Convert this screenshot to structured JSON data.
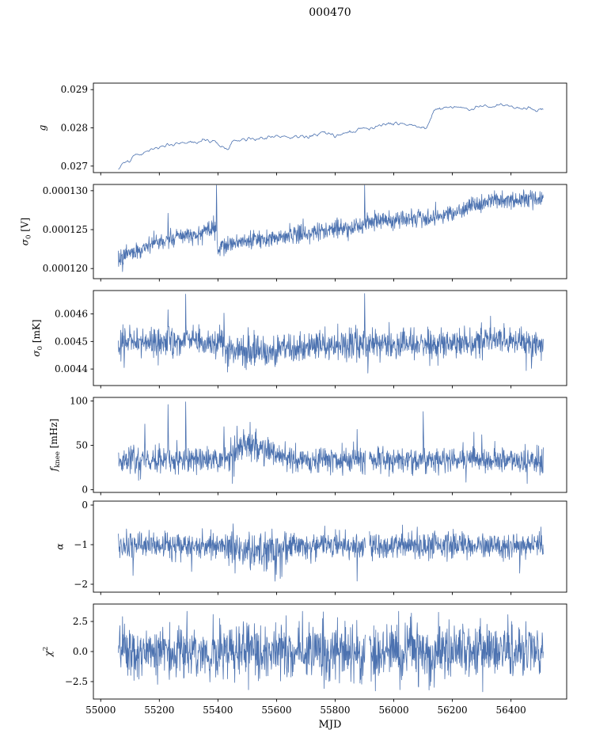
{
  "title": "000470",
  "chart_data": {
    "type": "line",
    "title": "000470",
    "xlabel": "MJD",
    "xlim": [
      54975,
      56590
    ],
    "xticks": [
      {
        "v": 55000,
        "label": "55000"
      },
      {
        "v": 55200,
        "label": "55200"
      },
      {
        "v": 55400,
        "label": "55400"
      },
      {
        "v": 55600,
        "label": "55600"
      },
      {
        "v": 55800,
        "label": "55800"
      },
      {
        "v": 56000,
        "label": "56000"
      },
      {
        "v": 56200,
        "label": "56200"
      },
      {
        "v": 56400,
        "label": "56400"
      }
    ],
    "series_color": "#4c72b0",
    "axis_color": "#000000",
    "legend": "none",
    "grid": false,
    "subplots": [
      {
        "name": "g",
        "ylabel": {
          "main": "g",
          "sub": "",
          "sup": "",
          "post": "",
          "italic": true
        },
        "ylim": [
          0.02683,
          0.02917
        ],
        "yticks": [
          {
            "v": 0.027,
            "label": "0.027"
          },
          {
            "v": 0.028,
            "label": "0.028"
          },
          {
            "v": 0.029,
            "label": "0.029"
          }
        ],
        "series": {
          "x_start": 55060,
          "x_end": 56510,
          "n": 460,
          "noise": 4.2e-05,
          "smooth": 3,
          "seed": 101,
          "clip": [
            0.02684,
            0.02916
          ],
          "gaps": [],
          "noise_regions": [],
          "spikes": [],
          "baseline": [
            [
              55060,
              0.02692
            ],
            [
              55090,
              0.02715
            ],
            [
              55130,
              0.0273
            ],
            [
              55180,
              0.02745
            ],
            [
              55230,
              0.02755
            ],
            [
              55300,
              0.02762
            ],
            [
              55380,
              0.02768
            ],
            [
              55420,
              0.02752
            ],
            [
              55435,
              0.02742
            ],
            [
              55450,
              0.02768
            ],
            [
              55520,
              0.0277
            ],
            [
              55560,
              0.02775
            ],
            [
              55600,
              0.02778
            ],
            [
              55650,
              0.02772
            ],
            [
              55680,
              0.0278
            ],
            [
              55720,
              0.02776
            ],
            [
              55760,
              0.0279
            ],
            [
              55800,
              0.02778
            ],
            [
              55840,
              0.02788
            ],
            [
              55880,
              0.02795
            ],
            [
              55920,
              0.028
            ],
            [
              55960,
              0.02808
            ],
            [
              56000,
              0.02815
            ],
            [
              56040,
              0.0281
            ],
            [
              56080,
              0.02805
            ],
            [
              56110,
              0.028
            ],
            [
              56140,
              0.02848
            ],
            [
              56180,
              0.02852
            ],
            [
              56220,
              0.02855
            ],
            [
              56260,
              0.02848
            ],
            [
              56300,
              0.02858
            ],
            [
              56330,
              0.02852
            ],
            [
              56360,
              0.02865
            ],
            [
              56390,
              0.0286
            ],
            [
              56420,
              0.0285
            ],
            [
              56450,
              0.02852
            ],
            [
              56480,
              0.02848
            ],
            [
              56510,
              0.0285
            ]
          ]
        }
      },
      {
        "name": "sigma0-V",
        "ylabel": {
          "main": "σ",
          "sub": "0",
          "sup": "",
          "post": " [V]",
          "italic": true
        },
        "ylim": [
          0.0001187,
          0.0001308
        ],
        "yticks": [
          {
            "v": 0.00012,
            "label": "0.000120"
          },
          {
            "v": 0.000125,
            "label": "0.000125"
          },
          {
            "v": 0.00013,
            "label": "0.000130"
          }
        ],
        "series": {
          "x_start": 55060,
          "x_end": 56510,
          "n": 1300,
          "noise": 5.5e-07,
          "smooth": 1,
          "seed": 202,
          "clip": [
            0.0001188,
            0.0001307
          ],
          "gaps": [],
          "noise_regions": [],
          "spikes": [
            {
              "x": 55075,
              "v": 0.0001196
            },
            {
              "x": 55230,
              "v": 0.0001271
            },
            {
              "x": 55395,
              "v": 0.0001307
            },
            {
              "x": 55900,
              "v": 0.0001307
            },
            {
              "x": 56060,
              "v": 0.0001277
            }
          ],
          "baseline": [
            [
              55060,
              0.0001212
            ],
            [
              55100,
              0.000122
            ],
            [
              55150,
              0.0001228
            ],
            [
              55200,
              0.0001234
            ],
            [
              55250,
              0.0001238
            ],
            [
              55300,
              0.0001242
            ],
            [
              55350,
              0.0001247
            ],
            [
              55395,
              0.0001252
            ],
            [
              55400,
              0.0001226
            ],
            [
              55450,
              0.0001232
            ],
            [
              55500,
              0.0001236
            ],
            [
              55550,
              0.0001238
            ],
            [
              55600,
              0.0001241
            ],
            [
              55650,
              0.0001243
            ],
            [
              55700,
              0.0001246
            ],
            [
              55750,
              0.0001248
            ],
            [
              55800,
              0.000125
            ],
            [
              55850,
              0.0001252
            ],
            [
              55895,
              0.0001255
            ],
            [
              55910,
              0.0001262
            ],
            [
              55960,
              0.0001262
            ],
            [
              56000,
              0.0001263
            ],
            [
              56050,
              0.0001264
            ],
            [
              56100,
              0.0001262
            ],
            [
              56150,
              0.0001268
            ],
            [
              56200,
              0.0001272
            ],
            [
              56250,
              0.0001278
            ],
            [
              56300,
              0.0001284
            ],
            [
              56350,
              0.0001288
            ],
            [
              56400,
              0.0001289
            ],
            [
              56450,
              0.0001288
            ],
            [
              56510,
              0.0001287
            ]
          ]
        }
      },
      {
        "name": "sigma0-mK",
        "ylabel": {
          "main": "σ",
          "sub": "0",
          "sup": "",
          "post": " [mK]",
          "italic": true
        },
        "ylim": [
          0.00434,
          0.004685
        ],
        "yticks": [
          {
            "v": 0.0044,
            "label": "0.0044"
          },
          {
            "v": 0.0045,
            "label": "0.0045"
          },
          {
            "v": 0.0046,
            "label": "0.0046"
          }
        ],
        "series": {
          "x_start": 55060,
          "x_end": 56510,
          "n": 1300,
          "noise": 2.6e-05,
          "smooth": 1,
          "seed": 303,
          "clip": [
            0.004355,
            0.004675
          ],
          "gaps": [],
          "noise_regions": [],
          "spikes": [
            {
              "x": 55080,
              "v": 0.004405
            },
            {
              "x": 55230,
              "v": 0.004615
            },
            {
              "x": 55290,
              "v": 0.004672
            },
            {
              "x": 55420,
              "v": 0.004603
            },
            {
              "x": 55900,
              "v": 0.004674
            },
            {
              "x": 55912,
              "v": 0.004385
            },
            {
              "x": 56330,
              "v": 0.004592
            },
            {
              "x": 56470,
              "v": 0.004402
            }
          ],
          "baseline": [
            [
              55060,
              0.0045
            ],
            [
              55400,
              0.0045
            ],
            [
              55430,
              0.00448
            ],
            [
              55460,
              0.004465
            ],
            [
              55520,
              0.004462
            ],
            [
              55600,
              0.004468
            ],
            [
              55680,
              0.004478
            ],
            [
              55760,
              0.004482
            ],
            [
              55850,
              0.004488
            ],
            [
              55950,
              0.004488
            ],
            [
              56050,
              0.004492
            ],
            [
              56150,
              0.004492
            ],
            [
              56250,
              0.004498
            ],
            [
              56320,
              0.004505
            ],
            [
              56400,
              0.004498
            ],
            [
              56510,
              0.0045
            ]
          ]
        }
      },
      {
        "name": "fknee",
        "ylabel": {
          "main": "f",
          "sub": "knee",
          "sup": "",
          "post": " [mHz]",
          "italic": true
        },
        "ylim": [
          -3,
          104
        ],
        "yticks": [
          {
            "v": 0,
            "label": "0"
          },
          {
            "v": 50,
            "label": "50"
          },
          {
            "v": 100,
            "label": "100"
          }
        ],
        "series": {
          "x_start": 55060,
          "x_end": 56510,
          "n": 1300,
          "noise": 7.5,
          "smooth": 1,
          "seed": 404,
          "clip": [
            7,
            100
          ],
          "gaps": [
            [
              55903,
              55917
            ]
          ],
          "noise_regions": [
            {
              "from": 55440,
              "to": 55580,
              "mult": 1.35
            }
          ],
          "spikes": [
            {
              "x": 55150,
              "v": 74
            },
            {
              "x": 55230,
              "v": 96
            },
            {
              "x": 55290,
              "v": 99
            },
            {
              "x": 55420,
              "v": 71
            },
            {
              "x": 55875,
              "v": 68
            },
            {
              "x": 56100,
              "v": 88
            },
            {
              "x": 56300,
              "v": 62
            }
          ],
          "baseline": [
            [
              55060,
              33
            ],
            [
              55430,
              34
            ],
            [
              55465,
              48
            ],
            [
              55505,
              52
            ],
            [
              55550,
              46
            ],
            [
              55610,
              38
            ],
            [
              55680,
              34
            ],
            [
              56510,
              33
            ]
          ]
        }
      },
      {
        "name": "alpha",
        "ylabel": {
          "main": "α",
          "sub": "",
          "sup": "",
          "post": "",
          "italic": true
        },
        "ylim": [
          -2.2,
          0.1
        ],
        "yticks": [
          {
            "v": -2,
            "label": "−2"
          },
          {
            "v": -1,
            "label": "−1"
          },
          {
            "v": 0,
            "label": "0"
          }
        ],
        "series": {
          "x_start": 55060,
          "x_end": 56510,
          "n": 1300,
          "noise": 0.17,
          "smooth": 1,
          "seed": 505,
          "clip": [
            -2.0,
            -0.3
          ],
          "gaps": [
            [
              55903,
              55917
            ]
          ],
          "noise_regions": [
            {
              "from": 55430,
              "to": 55650,
              "mult": 1.5
            }
          ],
          "spikes": [
            {
              "x": 55110,
              "v": -1.78
            },
            {
              "x": 55310,
              "v": -1.68
            },
            {
              "x": 55875,
              "v": -1.92
            },
            {
              "x": 56430,
              "v": -1.72
            }
          ],
          "baseline": [
            [
              55060,
              -1.02
            ],
            [
              55430,
              -1.03
            ],
            [
              55480,
              -1.17
            ],
            [
              55570,
              -1.17
            ],
            [
              55650,
              -1.04
            ],
            [
              56510,
              -1.02
            ]
          ]
        }
      },
      {
        "name": "chi2",
        "ylabel": {
          "main": "χ",
          "sub": "",
          "sup": "2",
          "post": "",
          "italic": true
        },
        "ylim": [
          -3.95,
          3.95
        ],
        "yticks": [
          {
            "v": -2.5,
            "label": "−2.5"
          },
          {
            "v": 0,
            "label": "0.0"
          },
          {
            "v": 2.5,
            "label": "2.5"
          }
        ],
        "series": {
          "x_start": 55060,
          "x_end": 56510,
          "n": 1300,
          "noise": 1.15,
          "smooth": 1,
          "seed": 606,
          "clip": [
            -3.35,
            3.35
          ],
          "gaps": [
            [
              55903,
              55917
            ]
          ],
          "noise_regions": [],
          "spikes": [
            {
              "x": 55760,
              "v": 3.3
            },
            {
              "x": 56060,
              "v": 3.2
            }
          ],
          "baseline": [
            [
              55060,
              0
            ],
            [
              56510,
              0
            ]
          ]
        }
      }
    ]
  }
}
